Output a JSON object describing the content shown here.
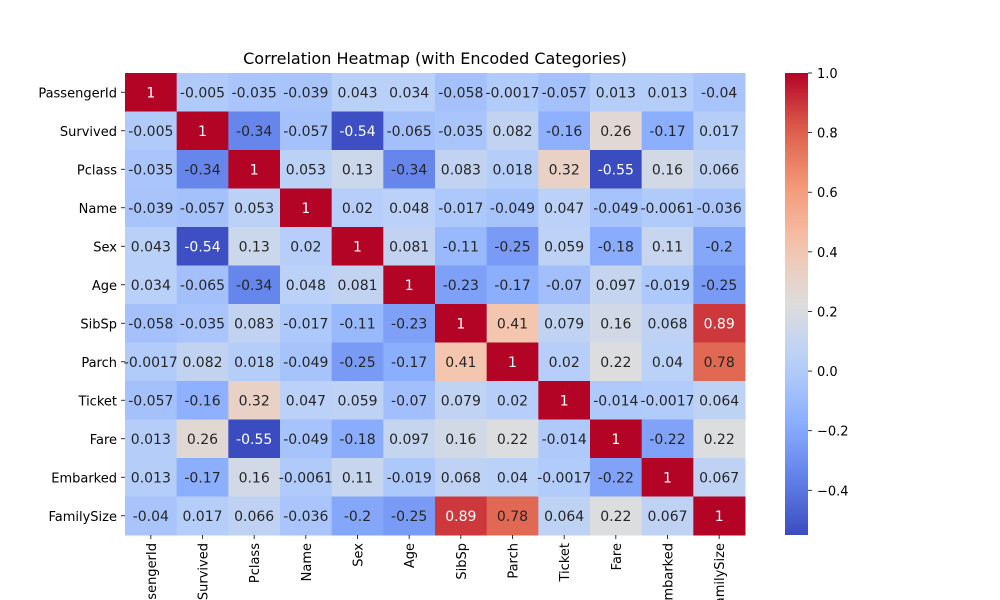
{
  "chart_data": {
    "type": "heatmap",
    "title": "Correlation Heatmap (with Encoded Categories)",
    "row_labels": [
      "PassengerId",
      "Survived",
      "Pclass",
      "Name",
      "Sex",
      "Age",
      "SibSp",
      "Parch",
      "Ticket",
      "Fare",
      "Embarked",
      "FamilySize"
    ],
    "col_labels": [
      "PassengerId",
      "Survived",
      "Pclass",
      "Name",
      "Sex",
      "Age",
      "SibSp",
      "Parch",
      "Ticket",
      "Fare",
      "Embarked",
      "FamilySize"
    ],
    "values": [
      [
        1,
        -0.005,
        -0.035,
        -0.039,
        0.043,
        0.034,
        -0.058,
        -0.0017,
        -0.057,
        0.013,
        0.013,
        -0.04
      ],
      [
        -0.005,
        1,
        -0.34,
        -0.057,
        -0.54,
        -0.065,
        -0.035,
        0.082,
        -0.16,
        0.26,
        -0.17,
        0.017
      ],
      [
        -0.035,
        -0.34,
        1,
        0.053,
        0.13,
        -0.34,
        0.083,
        0.018,
        0.32,
        -0.55,
        0.16,
        0.066
      ],
      [
        -0.039,
        -0.057,
        0.053,
        1,
        0.02,
        0.048,
        -0.017,
        -0.049,
        0.047,
        -0.049,
        -0.0061,
        -0.036
      ],
      [
        0.043,
        -0.54,
        0.13,
        0.02,
        1,
        0.081,
        -0.11,
        -0.25,
        0.059,
        -0.18,
        0.11,
        -0.2
      ],
      [
        0.034,
        -0.065,
        -0.34,
        0.048,
        0.081,
        1,
        -0.23,
        -0.17,
        -0.07,
        0.097,
        -0.019,
        -0.25
      ],
      [
        -0.058,
        -0.035,
        0.083,
        -0.017,
        -0.11,
        -0.23,
        1,
        0.41,
        0.079,
        0.16,
        0.068,
        0.89
      ],
      [
        -0.0017,
        0.082,
        0.018,
        -0.049,
        -0.25,
        -0.17,
        0.41,
        1,
        0.02,
        0.22,
        0.04,
        0.78
      ],
      [
        -0.057,
        -0.16,
        0.32,
        0.047,
        0.059,
        -0.07,
        0.079,
        0.02,
        1,
        -0.014,
        -0.0017,
        0.064
      ],
      [
        0.013,
        0.26,
        -0.55,
        -0.049,
        -0.18,
        0.097,
        0.16,
        0.22,
        -0.014,
        1,
        -0.22,
        0.22
      ],
      [
        0.013,
        -0.17,
        0.16,
        -0.0061,
        0.11,
        -0.019,
        0.068,
        0.04,
        -0.0017,
        -0.22,
        1,
        0.067
      ],
      [
        -0.04,
        0.017,
        0.066,
        -0.036,
        -0.2,
        -0.25,
        0.89,
        0.78,
        0.064,
        0.22,
        0.067,
        1
      ]
    ],
    "vmin": -0.55,
    "vmax": 1.0,
    "colormap": "coolwarm",
    "colorbar_ticks": [
      "1.0",
      "0.8",
      "0.6",
      "0.4",
      "0.2",
      "0.0",
      "−0.2",
      "−0.4"
    ],
    "colorbar_tick_values": [
      1.0,
      0.8,
      0.6,
      0.4,
      0.2,
      0.0,
      -0.2,
      -0.4
    ],
    "grid": false
  }
}
